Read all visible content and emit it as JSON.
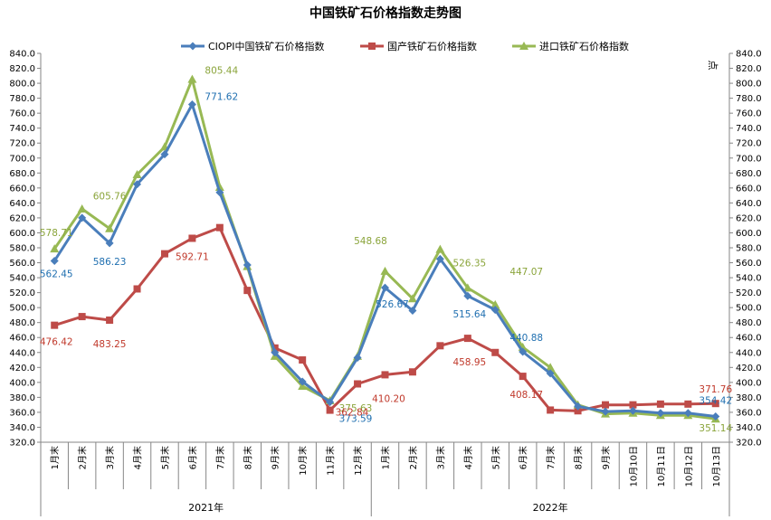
{
  "chart_data": {
    "type": "line",
    "title": "中国铁矿石价格指数走势图",
    "right_axis_unit": "点",
    "ylim": [
      320,
      840
    ],
    "y_tick_step": 20,
    "grid": false,
    "legend_position": "top",
    "categories": [
      "1月末",
      "2月末",
      "3月末",
      "4月末",
      "5月末",
      "6月末",
      "7月末",
      "8月末",
      "9月末",
      "10月末",
      "11月末",
      "12月末",
      "1月末",
      "2月末",
      "3月末",
      "4月末",
      "5月末",
      "6月末",
      "7月末",
      "8月末",
      "9月末",
      "10月10日",
      "10月11日",
      "10月12日",
      "10月13日"
    ],
    "year_groups": [
      {
        "label": "2021年",
        "count": 12
      },
      {
        "label": "2022年",
        "count": 13
      }
    ],
    "series": [
      {
        "name": "CIOPI中国铁矿石价格指数",
        "color": "#4a7ebb",
        "label_color": "#1f6fb0",
        "marker": "diamond",
        "values": [
          562.45,
          620,
          586.23,
          665,
          705,
          771.62,
          654,
          557,
          440,
          401,
          373.59,
          433,
          526.67,
          496,
          565,
          515.64,
          497,
          440.88,
          412,
          368,
          361,
          362,
          359,
          359,
          354.42
        ]
      },
      {
        "name": "国产铁矿石价格指数",
        "color": "#be4b48",
        "label_color": "#c0392b",
        "marker": "square",
        "values": [
          476.42,
          488,
          483.25,
          525,
          572,
          592.71,
          607,
          523,
          446,
          430,
          362.84,
          398,
          410.2,
          414,
          449,
          458.95,
          440,
          408.17,
          363,
          362,
          370,
          370,
          371,
          371,
          371.76
        ]
      },
      {
        "name": "进口铁矿石价格指数",
        "color": "#98b954",
        "label_color": "#8aa43a",
        "marker": "triangle",
        "values": [
          578.71,
          632,
          605.76,
          678,
          715,
          805.44,
          661,
          555,
          435,
          395,
          375.63,
          435,
          548.68,
          512,
          578,
          526.35,
          504,
          447.07,
          420,
          370,
          358,
          359,
          356,
          356,
          351.14
        ]
      }
    ],
    "data_labels": [
      {
        "series": 2,
        "index": 0,
        "text": "578.71"
      },
      {
        "series": 2,
        "index": 2,
        "text": "605.76"
      },
      {
        "series": 2,
        "index": 5,
        "text": "805.44"
      },
      {
        "series": 2,
        "index": 10,
        "text": "375.63"
      },
      {
        "series": 2,
        "index": 12,
        "text": "548.68"
      },
      {
        "series": 2,
        "index": 15,
        "text": "526.35"
      },
      {
        "series": 2,
        "index": 17,
        "text": "447.07"
      },
      {
        "series": 2,
        "index": 24,
        "text": "351.14"
      },
      {
        "series": 0,
        "index": 0,
        "text": "562.45"
      },
      {
        "series": 0,
        "index": 2,
        "text": "586.23"
      },
      {
        "series": 0,
        "index": 5,
        "text": "771.62"
      },
      {
        "series": 0,
        "index": 10,
        "text": "373.59"
      },
      {
        "series": 0,
        "index": 12,
        "text": "526.67"
      },
      {
        "series": 0,
        "index": 15,
        "text": "515.64"
      },
      {
        "series": 0,
        "index": 17,
        "text": "440.88"
      },
      {
        "series": 0,
        "index": 24,
        "text": "354.42"
      },
      {
        "series": 1,
        "index": 0,
        "text": "476.42"
      },
      {
        "series": 1,
        "index": 2,
        "text": "483.25"
      },
      {
        "series": 1,
        "index": 5,
        "text": "592.71"
      },
      {
        "series": 1,
        "index": 10,
        "text": "362.84"
      },
      {
        "series": 1,
        "index": 12,
        "text": "410.20"
      },
      {
        "series": 1,
        "index": 15,
        "text": "458.95"
      },
      {
        "series": 1,
        "index": 17,
        "text": "408.17"
      },
      {
        "series": 1,
        "index": 24,
        "text": "371.76"
      }
    ]
  }
}
